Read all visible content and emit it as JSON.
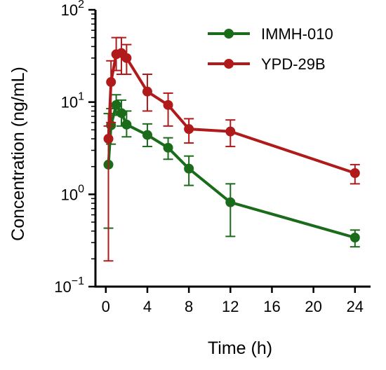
{
  "chart_data": {
    "type": "line",
    "title": "",
    "xlabel": "Time (h)",
    "ylabel": "Concentration (ng/mL)",
    "xlim": [
      -1,
      25.5
    ],
    "ylim": [
      0.1,
      100
    ],
    "yscale": "log",
    "x_ticks": [
      0,
      4,
      8,
      12,
      16,
      20,
      24
    ],
    "x_tick_labels": [
      "0",
      "4",
      "8",
      "12",
      "16",
      "20",
      "24"
    ],
    "y_ticks": [
      {
        "value": 0.1,
        "base": "10",
        "exp": "−1"
      },
      {
        "value": 1,
        "base": "10",
        "exp": "0"
      },
      {
        "value": 10,
        "base": "10",
        "exp": "1"
      },
      {
        "value": 100,
        "base": "10",
        "exp": "2"
      }
    ],
    "grid": false,
    "legend_position": "top-right",
    "series": [
      {
        "name": "IMMH-010",
        "color": "#1a6b1a",
        "x": [
          0.25,
          0.5,
          1,
          1.5,
          2,
          4,
          6,
          8,
          12,
          24
        ],
        "y": [
          2.1,
          5.6,
          9.3,
          7.6,
          5.7,
          4.4,
          3.2,
          1.9,
          0.82,
          0.34
        ],
        "err_low": [
          0.43,
          3.5,
          7.2,
          5.5,
          4.2,
          3.3,
          2.4,
          1.25,
          0.35,
          0.27
        ],
        "err_high": [
          7.5,
          8.5,
          12.0,
          10.5,
          8.0,
          5.8,
          4.1,
          2.6,
          1.3,
          0.41
        ]
      },
      {
        "name": "YPD-29B",
        "color": "#b01a1a",
        "x": [
          0.25,
          0.5,
          1,
          1.5,
          2,
          4,
          6,
          8,
          12,
          24
        ],
        "y": [
          4.0,
          16.5,
          33,
          34,
          30,
          13,
          9.3,
          5.1,
          4.8,
          1.7
        ],
        "err_low": [
          0.19,
          6.0,
          22,
          20,
          20,
          8.0,
          5.5,
          3.6,
          3.3,
          1.3
        ],
        "err_high": [
          5.5,
          28,
          50,
          50,
          42,
          20,
          12.5,
          6.6,
          6.4,
          2.1
        ]
      }
    ]
  }
}
